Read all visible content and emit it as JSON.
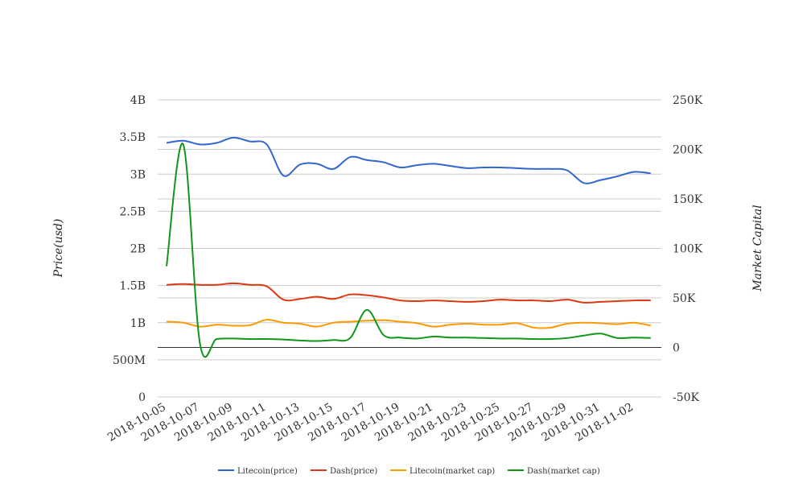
{
  "chart_data": {
    "type": "line",
    "title": "",
    "x": [
      "2018-10-05",
      "2018-10-06",
      "2018-10-07",
      "2018-10-08",
      "2018-10-09",
      "2018-10-10",
      "2018-10-11",
      "2018-10-12",
      "2018-10-13",
      "2018-10-14",
      "2018-10-15",
      "2018-10-16",
      "2018-10-17",
      "2018-10-18",
      "2018-10-19",
      "2018-10-20",
      "2018-10-21",
      "2018-10-22",
      "2018-10-23",
      "2018-10-24",
      "2018-10-25",
      "2018-10-26",
      "2018-10-27",
      "2018-10-28",
      "2018-10-29",
      "2018-10-30",
      "2018-10-31",
      "2018-11-01",
      "2018-11-02",
      "2018-11-03"
    ],
    "x_tick_labels": [
      "2018-10-05",
      "2018-10-07",
      "2018-10-09",
      "2018-10-11",
      "2018-10-13",
      "2018-10-15",
      "2018-10-17",
      "2018-10-19",
      "2018-10-21",
      "2018-10-23",
      "2018-10-25",
      "2018-10-27",
      "2018-10-29",
      "2018-10-31",
      "2018-11-02"
    ],
    "left_axis": {
      "label": "Price(usd)",
      "range": [
        0,
        4000000000
      ],
      "ticks": [
        0,
        500000000,
        1000000000,
        1500000000,
        2000000000,
        2500000000,
        3000000000,
        3500000000,
        4000000000
      ],
      "tick_labels": [
        "0",
        "500M",
        "1B",
        "1.5B",
        "2B",
        "2.5B",
        "3B",
        "3.5B",
        "4B"
      ]
    },
    "right_axis": {
      "label": "Market Capital",
      "range": [
        -50000,
        250000
      ],
      "ticks": [
        -50000,
        0,
        50000,
        100000,
        150000,
        200000,
        250000
      ],
      "tick_labels": [
        "-50K",
        "0",
        "50K",
        "100K",
        "150K",
        "200K",
        "250K"
      ]
    },
    "grid": true,
    "legend_position": "bottom",
    "series": [
      {
        "name": "Litecoin(price)",
        "axis": "left",
        "color": "#3366cc",
        "values": [
          3420000000,
          3450000000,
          3400000000,
          3420000000,
          3490000000,
          3440000000,
          3400000000,
          2980000000,
          3130000000,
          3140000000,
          3070000000,
          3230000000,
          3190000000,
          3160000000,
          3090000000,
          3120000000,
          3140000000,
          3110000000,
          3080000000,
          3090000000,
          3090000000,
          3080000000,
          3070000000,
          3070000000,
          3050000000,
          2880000000,
          2920000000,
          2970000000,
          3030000000,
          3010000000
        ]
      },
      {
        "name": "Dash(price)",
        "axis": "left",
        "color": "#dc3912",
        "values": [
          1510000000,
          1520000000,
          1510000000,
          1510000000,
          1530000000,
          1510000000,
          1490000000,
          1310000000,
          1320000000,
          1350000000,
          1320000000,
          1380000000,
          1370000000,
          1340000000,
          1300000000,
          1290000000,
          1300000000,
          1290000000,
          1280000000,
          1290000000,
          1310000000,
          1300000000,
          1300000000,
          1290000000,
          1310000000,
          1270000000,
          1280000000,
          1290000000,
          1300000000,
          1300000000
        ]
      },
      {
        "name": "Litecoin(market cap)",
        "axis": "right",
        "color": "#ff9900",
        "values": [
          26000,
          25000,
          21000,
          23000,
          22000,
          22500,
          28000,
          25000,
          24000,
          21000,
          25000,
          26000,
          27000,
          27500,
          26000,
          24500,
          21000,
          23000,
          24000,
          23000,
          23000,
          24500,
          20000,
          20000,
          24000,
          25000,
          24500,
          23500,
          25000,
          22000
        ]
      },
      {
        "name": "Dash(market cap)",
        "axis": "right",
        "color": "#109618",
        "values": [
          82000,
          205000,
          4000,
          8500,
          9000,
          8500,
          8500,
          8000,
          7000,
          6500,
          7500,
          9500,
          38000,
          12500,
          10000,
          9000,
          11000,
          10000,
          10000,
          9500,
          9000,
          9000,
          8500,
          8500,
          9500,
          12000,
          14000,
          9500,
          10000,
          9500
        ]
      }
    ]
  }
}
